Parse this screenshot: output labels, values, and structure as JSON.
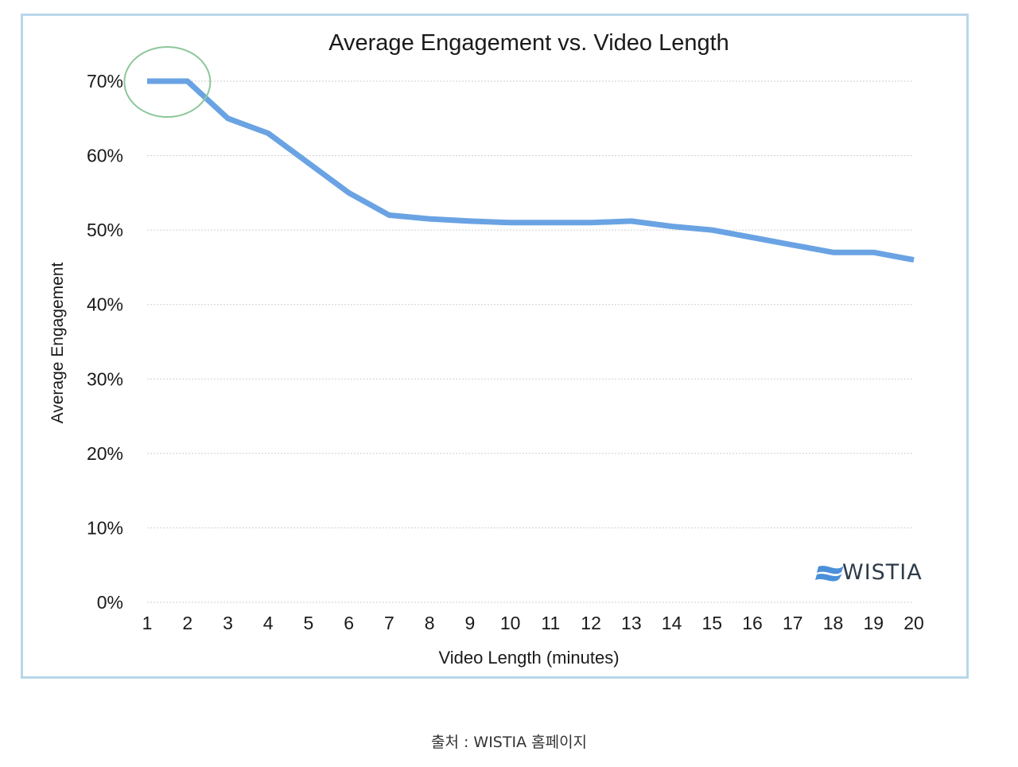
{
  "chart_data": {
    "type": "line",
    "title": "Average Engagement vs. Video Length",
    "xlabel": "Video Length (minutes)",
    "ylabel": "Average Engagement",
    "categories": [
      "1",
      "2",
      "3",
      "4",
      "5",
      "6",
      "7",
      "8",
      "9",
      "10",
      "11",
      "12",
      "13",
      "14",
      "15",
      "16",
      "17",
      "18",
      "19",
      "20"
    ],
    "y_ticks": [
      {
        "value": 0,
        "label": "0%"
      },
      {
        "value": 10,
        "label": "10%"
      },
      {
        "value": 20,
        "label": "20%"
      },
      {
        "value": 30,
        "label": "30%"
      },
      {
        "value": 40,
        "label": "40%"
      },
      {
        "value": 50,
        "label": "50%"
      },
      {
        "value": 60,
        "label": "60%"
      },
      {
        "value": 70,
        "label": "70%"
      }
    ],
    "ylim": [
      0,
      70
    ],
    "grid": true,
    "series": [
      {
        "name": "Average Engagement",
        "color": "#6aa3e3",
        "values": [
          70,
          70,
          65,
          63,
          59,
          55,
          52,
          51.5,
          51.2,
          51,
          51,
          51,
          51.2,
          50.5,
          50,
          49,
          48,
          47,
          47,
          46
        ]
      }
    ],
    "annotations": [
      {
        "type": "ellipse",
        "target_categories": [
          "1",
          "2"
        ],
        "value": 70,
        "color": "#8cc79a"
      }
    ]
  },
  "brand": {
    "text": "WISTIA",
    "icon": "wistia-logo-icon",
    "color": "#2d3b4a",
    "icon_color": "#4a90d9"
  },
  "caption": "출처 : WISTIA 홈페이지",
  "colors": {
    "frame_border": "#b9d6ea"
  }
}
